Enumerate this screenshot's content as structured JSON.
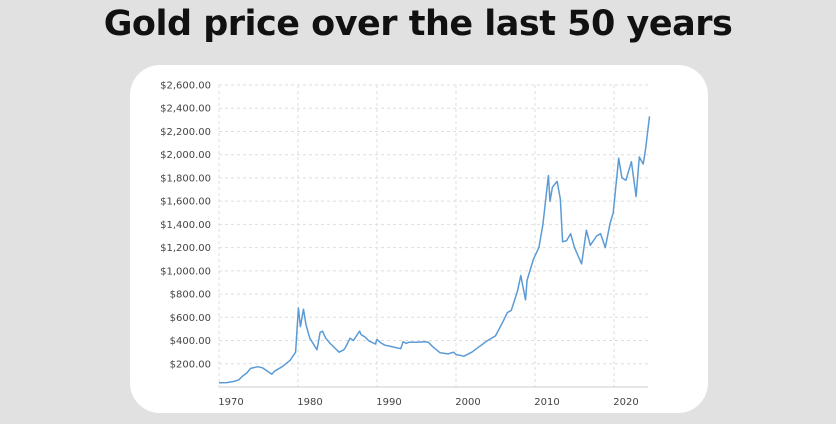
{
  "title": "Gold price over the last 50 years",
  "chart_data": {
    "type": "line",
    "title": "Gold price over the last 50 years",
    "xlabel": "",
    "ylabel": "",
    "xlim": [
      1970,
      2024.5
    ],
    "ylim": [
      0,
      2600
    ],
    "grid": true,
    "x_ticks": [
      1970,
      1980,
      1990,
      2000,
      2010,
      2020
    ],
    "x_tick_labels": [
      "1970",
      "1980",
      "1990",
      "2000",
      "2010",
      "2020"
    ],
    "y_ticks": [
      200,
      400,
      600,
      800,
      1000,
      1200,
      1400,
      1600,
      1800,
      2000,
      2200,
      2400,
      2600
    ],
    "y_tick_labels": [
      "$200.00",
      "$400.00",
      "$600.00",
      "$800.00",
      "$1,000.00",
      "$1,200.00",
      "$1,400.00",
      "$1,600.00",
      "$1,800.00",
      "$2,000.00",
      "$2,200.00",
      "$2,400.00",
      "$2,600.00"
    ],
    "series": [
      {
        "name": "Gold price",
        "color": "#5b9bd5",
        "x": [
          1970,
          1971,
          1972,
          1972.5,
          1973,
          1973.5,
          1974,
          1974.9,
          1975.5,
          1976.7,
          1977,
          1978,
          1979,
          1979.7,
          1980.05,
          1980.3,
          1980.7,
          1981,
          1981.5,
          1982.4,
          1982.8,
          1983.1,
          1983.5,
          1984,
          1985.2,
          1985.8,
          1986,
          1986.6,
          1987,
          1987.8,
          1988,
          1988.5,
          1989,
          1989.8,
          1990,
          1990.5,
          1991,
          1992,
          1993,
          1993.3,
          1993.7,
          1994,
          1995,
          1996,
          1996.5,
          1997,
          1997.8,
          1998,
          1999,
          1999.7,
          2000,
          2001,
          2002,
          2003,
          2004,
          2005,
          2006,
          2006.5,
          2007,
          2007.8,
          2008.2,
          2008.8,
          2009,
          2009.8,
          2010.5,
          2011,
          2011.7,
          2011.9,
          2012.2,
          2012.8,
          2013.2,
          2013.5,
          2014,
          2014.5,
          2015,
          2015.9,
          2016.5,
          2017,
          2017.8,
          2018.3,
          2018.9,
          2019.5,
          2019.9,
          2020.6,
          2021,
          2021.5,
          2022.2,
          2022.8,
          2023.2,
          2023.7,
          2024,
          2024.5
        ],
        "y": [
          36,
          38,
          50,
          62,
          95,
          120,
          160,
          175,
          165,
          110,
          135,
          175,
          230,
          300,
          680,
          520,
          670,
          540,
          420,
          320,
          470,
          480,
          420,
          380,
          300,
          320,
          340,
          420,
          400,
          480,
          450,
          430,
          395,
          370,
          410,
          380,
          360,
          345,
          330,
          390,
          375,
          385,
          385,
          390,
          385,
          350,
          305,
          295,
          285,
          300,
          280,
          265,
          300,
          350,
          400,
          440,
          570,
          640,
          660,
          830,
          960,
          750,
          920,
          1100,
          1200,
          1400,
          1820,
          1600,
          1720,
          1770,
          1620,
          1250,
          1260,
          1320,
          1200,
          1060,
          1350,
          1220,
          1300,
          1320,
          1200,
          1410,
          1500,
          1970,
          1800,
          1780,
          1940,
          1640,
          1980,
          1920,
          2050,
          2330
        ]
      }
    ]
  }
}
